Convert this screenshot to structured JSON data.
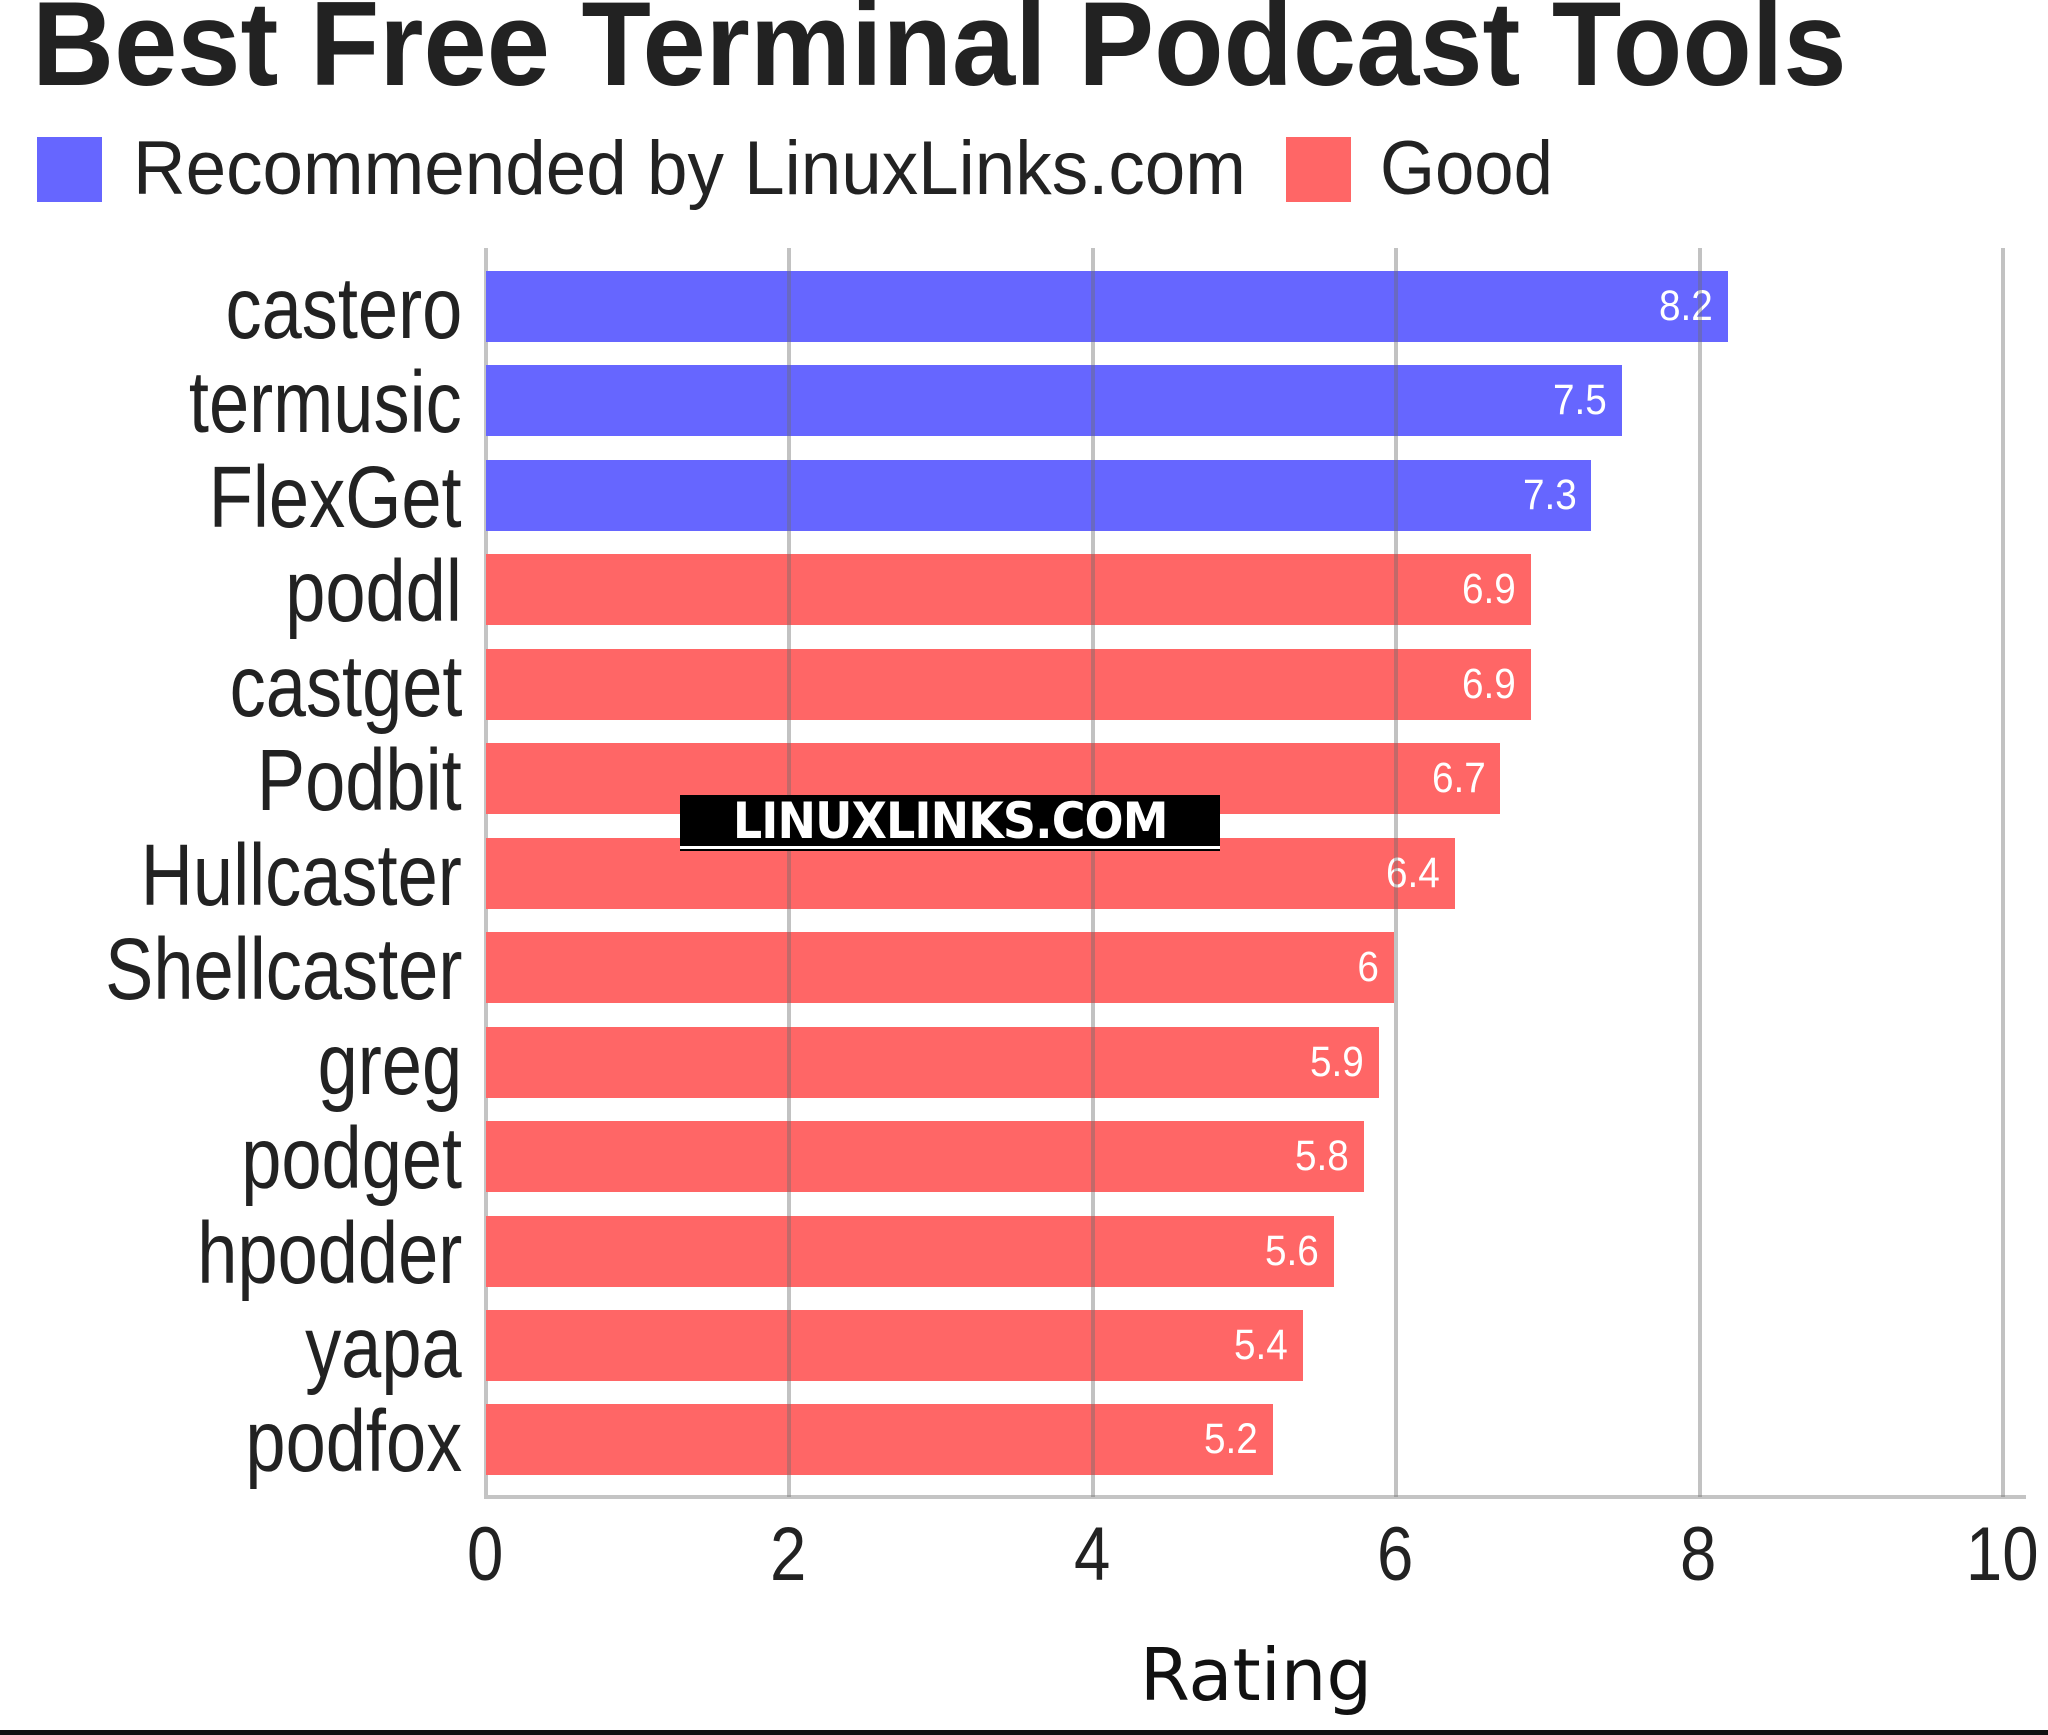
{
  "title": "Best Free Terminal Podcast Tools",
  "legend": [
    {
      "label": "Recommended by LinuxLinks.com",
      "color": "#6666ff"
    },
    {
      "label": "Good",
      "color": "#ff6666"
    }
  ],
  "watermark": "LINUXLINKS.COM",
  "x_axis": {
    "title": "Rating",
    "ticks": [
      "0",
      "2",
      "4",
      "6",
      "8",
      "10"
    ]
  },
  "bars": [
    {
      "name": "castero",
      "value": "8.2",
      "category": "Recommended by LinuxLinks.com"
    },
    {
      "name": "termusic",
      "value": "7.5",
      "category": "Recommended by LinuxLinks.com"
    },
    {
      "name": "FlexGet",
      "value": "7.3",
      "category": "Recommended by LinuxLinks.com"
    },
    {
      "name": "poddl",
      "value": "6.9",
      "category": "Good"
    },
    {
      "name": "castget",
      "value": "6.9",
      "category": "Good"
    },
    {
      "name": "Podbit",
      "value": "6.7",
      "category": "Good"
    },
    {
      "name": "Hullcaster",
      "value": "6.4",
      "category": "Good"
    },
    {
      "name": "Shellcaster",
      "value": "6",
      "category": "Good"
    },
    {
      "name": "greg",
      "value": "5.9",
      "category": "Good"
    },
    {
      "name": "podget",
      "value": "5.8",
      "category": "Good"
    },
    {
      "name": "hpodder",
      "value": "5.6",
      "category": "Good"
    },
    {
      "name": "yapa",
      "value": "5.4",
      "category": "Good"
    },
    {
      "name": "podfox",
      "value": "5.2",
      "category": "Good"
    }
  ],
  "chart_data": {
    "type": "bar",
    "orientation": "horizontal",
    "title": "Best Free Terminal Podcast Tools",
    "xlabel": "Rating",
    "ylabel": "",
    "xlim": [
      0,
      10
    ],
    "x_ticks": [
      0,
      2,
      4,
      6,
      8,
      10
    ],
    "grid": true,
    "legend_position": "top-left",
    "categories": [
      "castero",
      "termusic",
      "FlexGet",
      "poddl",
      "castget",
      "Podbit",
      "Hullcaster",
      "Shellcaster",
      "greg",
      "podget",
      "hpodder",
      "yapa",
      "podfox"
    ],
    "values": [
      8.2,
      7.5,
      7.3,
      6.9,
      6.9,
      6.7,
      6.4,
      6.0,
      5.9,
      5.8,
      5.6,
      5.4,
      5.2
    ],
    "series": [
      {
        "name": "Recommended by LinuxLinks.com",
        "color": "#6666ff",
        "categories": [
          "castero",
          "termusic",
          "FlexGet"
        ],
        "values": [
          8.2,
          7.5,
          7.3
        ]
      },
      {
        "name": "Good",
        "color": "#ff6666",
        "categories": [
          "poddl",
          "castget",
          "Podbit",
          "Hullcaster",
          "Shellcaster",
          "greg",
          "podget",
          "hpodder",
          "yapa",
          "podfox"
        ],
        "values": [
          6.9,
          6.9,
          6.7,
          6.4,
          6.0,
          5.9,
          5.8,
          5.6,
          5.4,
          5.2
        ]
      }
    ],
    "data_labels": true,
    "annotations": [
      "LINUXLINKS.COM"
    ]
  }
}
